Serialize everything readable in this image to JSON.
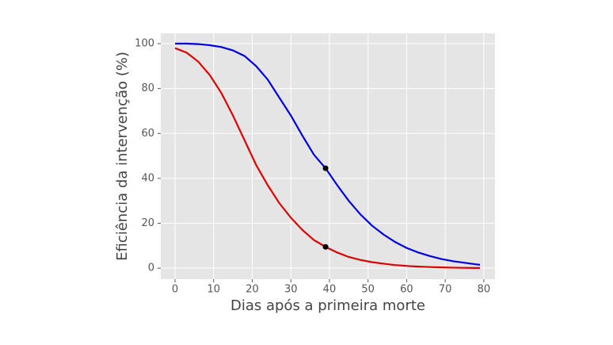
{
  "chart_data": {
    "type": "line",
    "xlabel": "Dias após a primeira morte",
    "ylabel": "Eficiência da intervenção (%)",
    "x": [
      0,
      3,
      6,
      9,
      12,
      15,
      18,
      21,
      24,
      27,
      30,
      33,
      36,
      39,
      42,
      45,
      48,
      51,
      54,
      57,
      60,
      63,
      66,
      69,
      72,
      75,
      78,
      79
    ],
    "series": [
      {
        "color": "#0000dd",
        "values": [
          100,
          100,
          99.8,
          99.3,
          98.5,
          97,
          94.5,
          90,
          84,
          76,
          68,
          59,
          50.5,
          44.5,
          37,
          30,
          24,
          19,
          15,
          11.7,
          9,
          7,
          5.4,
          4.1,
          3.1,
          2.4,
          1.7,
          1.5
        ]
      },
      {
        "color": "#dd0000",
        "values": [
          98,
          96,
          92,
          86,
          78,
          68,
          57,
          46,
          37,
          29,
          22.5,
          17,
          12.5,
          9.5,
          7,
          5,
          3.7,
          2.7,
          2,
          1.4,
          1,
          0.7,
          0.5,
          0.35,
          0.25,
          0.15,
          0.1,
          0.1
        ]
      }
    ],
    "markers": {
      "color": "#000000",
      "x": [
        39,
        39
      ],
      "values": [
        44.5,
        9.5
      ]
    },
    "xlim": [
      -3.7,
      82.9
    ],
    "ylim": [
      -4.9,
      104.6
    ],
    "xticks": [
      0,
      10,
      20,
      30,
      40,
      50,
      60,
      70,
      80
    ],
    "yticks": [
      0,
      20,
      40,
      60,
      80,
      100
    ],
    "grid": true,
    "background": "#e5e5e5"
  }
}
